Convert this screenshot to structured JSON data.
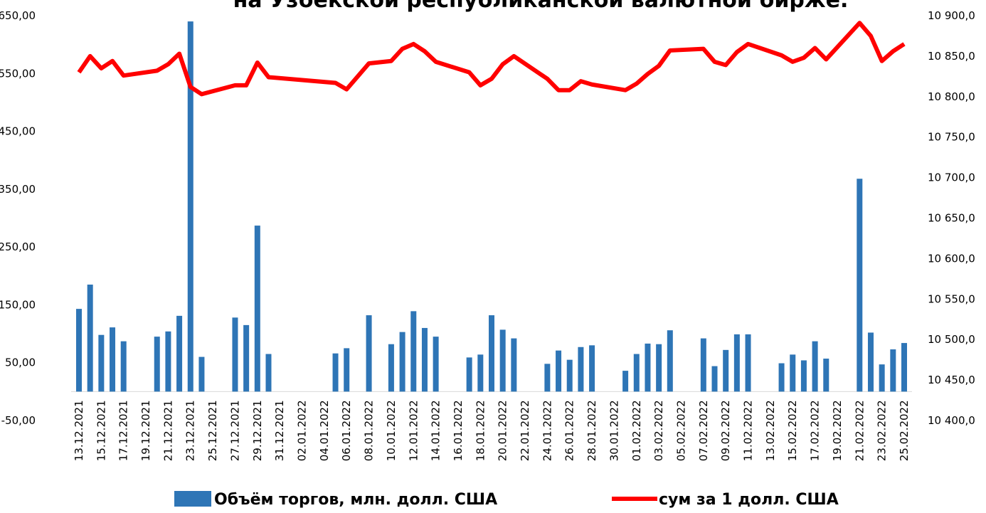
{
  "chart_data": {
    "type": "bar_line",
    "title": "на Узбекской республиканской валютной бирже.",
    "categories": [
      "13.12.2021",
      null,
      "15.12.2021",
      null,
      "17.12.2021",
      null,
      "19.12.2021",
      null,
      "21.12.2021",
      null,
      "23.12.2021",
      null,
      "25.12.2021",
      null,
      "27.12.2021",
      null,
      "29.12.2021",
      null,
      "31.12.2021",
      null,
      "02.01.2022",
      null,
      "04.01.2022",
      null,
      "06.01.2022",
      null,
      "08.01.2022",
      null,
      "10.01.2022",
      null,
      "12.01.2022",
      null,
      "14.01.2022",
      null,
      "16.01.2022",
      null,
      "18.01.2022",
      null,
      "20.01.2022",
      null,
      "22.01.2022",
      null,
      "24.01.2022",
      null,
      "26.01.2022",
      null,
      "28.01.2022",
      null,
      "30.01.2022",
      null,
      "01.02.2022",
      null,
      "03.02.2022",
      null,
      "05.02.2022",
      null,
      "07.02.2022",
      null,
      "09.02.2022",
      null,
      "11.02.2022",
      null,
      "13.02.2022",
      null,
      "15.02.2022",
      null,
      "17.02.2022",
      null,
      "19.02.2022",
      null,
      "21.02.2022",
      null,
      "23.02.2022",
      null,
      "25.02.2022"
    ],
    "series": [
      {
        "name": "Объём торгов, млн. долл. США",
        "type": "bar",
        "color": "#2e75b6",
        "values": [
          143,
          185,
          98,
          111,
          87,
          null,
          null,
          95,
          104,
          131,
          640,
          60,
          null,
          null,
          128,
          115,
          287,
          65,
          null,
          null,
          null,
          null,
          null,
          66,
          75,
          null,
          132,
          null,
          82,
          103,
          139,
          110,
          95,
          null,
          null,
          59,
          64,
          132,
          107,
          92,
          null,
          null,
          48,
          71,
          55,
          77,
          80,
          null,
          null,
          36,
          65,
          83,
          82,
          106,
          null,
          null,
          92,
          44,
          72,
          99,
          99,
          null,
          null,
          49,
          64,
          54,
          87,
          57,
          null,
          null,
          368,
          102,
          47,
          73,
          84
        ]
      },
      {
        "name": "сум за 1 долл. США",
        "type": "line",
        "axis": "y2",
        "color": "#ff0000",
        "values": [
          10830,
          10850,
          10835,
          10844,
          10826,
          null,
          null,
          10832,
          10840,
          10853,
          10812,
          10803,
          null,
          null,
          10814,
          10814,
          10842,
          10824,
          null,
          null,
          null,
          null,
          null,
          10817,
          10809,
          null,
          10841,
          null,
          10844,
          10859,
          10865,
          10856,
          10843,
          null,
          null,
          10830,
          10814,
          10822,
          10840,
          10850,
          null,
          null,
          10822,
          10808,
          10808,
          10819,
          10815,
          null,
          null,
          10808,
          10816,
          10828,
          10838,
          10857,
          null,
          null,
          10859,
          10843,
          10839,
          10855,
          10865,
          null,
          null,
          10851,
          10843,
          10848,
          10860,
          10846,
          null,
          null,
          10891,
          10875,
          10844,
          10856,
          10865
        ]
      }
    ],
    "ylim": [
      -50,
      650
    ],
    "yticks": [
      {
        "value": -50,
        "label": "-50,00"
      },
      {
        "value": 50,
        "label": "50,00"
      },
      {
        "value": 150,
        "label": "150,00"
      },
      {
        "value": 250,
        "label": "250,00"
      },
      {
        "value": 350,
        "label": "350,00"
      },
      {
        "value": 450,
        "label": "450,00"
      },
      {
        "value": 550,
        "label": "550,00"
      },
      {
        "value": 650,
        "label": "650,00"
      }
    ],
    "y2lim": [
      10400,
      10900
    ],
    "y2ticks": [
      {
        "value": 10400,
        "label": "10 400,0"
      },
      {
        "value": 10450,
        "label": "10 450,0"
      },
      {
        "value": 10500,
        "label": "10 500,0"
      },
      {
        "value": 10550,
        "label": "10 550,0"
      },
      {
        "value": 10600,
        "label": "10 600,0"
      },
      {
        "value": 10650,
        "label": "10 650,0"
      },
      {
        "value": 10700,
        "label": "10 700,0"
      },
      {
        "value": 10750,
        "label": "10 750,0"
      },
      {
        "value": 10800,
        "label": "10 800,0"
      },
      {
        "value": 10850,
        "label": "10 850,0"
      },
      {
        "value": 10900,
        "label": "10 900,0"
      }
    ],
    "legend": "bottom"
  }
}
